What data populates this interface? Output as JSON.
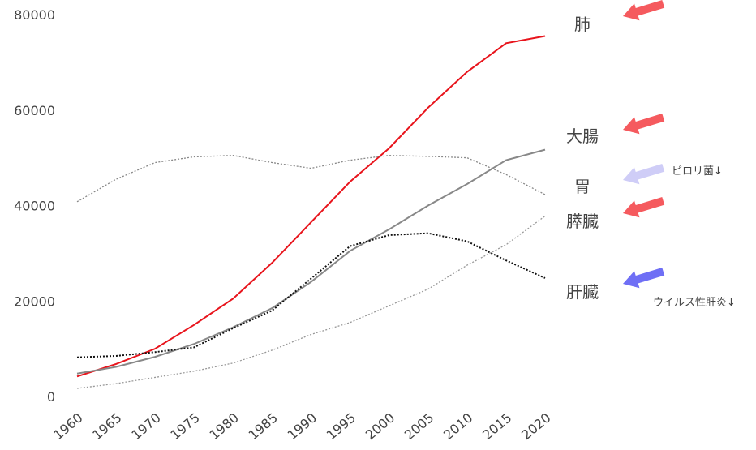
{
  "chart_data": {
    "type": "line",
    "x": [
      1960,
      1965,
      1970,
      1975,
      1980,
      1985,
      1990,
      1995,
      2000,
      2005,
      2010,
      2015,
      2020
    ],
    "series": [
      {
        "name": "肺",
        "color": "#e8141c",
        "style": "solid",
        "marker_color": "#f55a5e",
        "values": [
          4200,
          6800,
          10000,
          15000,
          20500,
          28000,
          36500,
          45000,
          52000,
          60500,
          68000,
          74000,
          75500
        ]
      },
      {
        "name": "大腸",
        "color": "#888888",
        "style": "solid",
        "marker_color": "#f55a5e",
        "values": [
          4800,
          6200,
          8300,
          11000,
          14500,
          18500,
          24000,
          30500,
          35000,
          40000,
          44500,
          49500,
          51700
        ]
      },
      {
        "name": "胃",
        "color": "#888888",
        "style": "dotted",
        "marker_color": "#cfcdf7",
        "values": [
          40800,
          45500,
          49000,
          50200,
          50500,
          49000,
          47800,
          49500,
          50500,
          50300,
          50000,
          46500,
          42300
        ]
      },
      {
        "name": "膵臓",
        "color": "#999999",
        "style": "dotted",
        "marker_color": "#f55a5e",
        "values": [
          1700,
          2700,
          4000,
          5300,
          7000,
          9700,
          13000,
          15500,
          19000,
          22500,
          27500,
          31800,
          37800
        ]
      },
      {
        "name": "肝臓",
        "color": "#111111",
        "style": "dotted",
        "marker_color": "#6f6ff5",
        "values": [
          8200,
          8500,
          9300,
          10300,
          14300,
          18000,
          24700,
          31500,
          33800,
          34200,
          32500,
          28500,
          24800
        ]
      }
    ],
    "annotations": [
      "ピロリ菌↓",
      "ウイルス性肝炎↓"
    ],
    "xlim": [
      1960,
      2020
    ],
    "xticks": [
      1960,
      1965,
      1970,
      1975,
      1980,
      1985,
      1990,
      1995,
      2000,
      2005,
      2010,
      2015,
      2020
    ],
    "ylim": [
      0,
      80000
    ],
    "yticks": [
      0,
      20000,
      40000,
      60000,
      80000
    ],
    "grid": false
  }
}
